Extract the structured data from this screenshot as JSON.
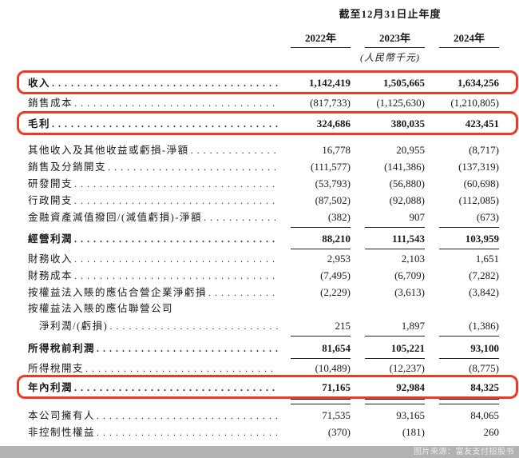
{
  "header": {
    "period_title": "截至12月31日止年度",
    "years": [
      "2022年",
      "2023年",
      "2024年"
    ],
    "unit_note": "(人民幣千元)"
  },
  "colors": {
    "highlight_red": "#ee3a24",
    "source_bar_gray": "#b2b2b2"
  },
  "rows": [
    {
      "label": "收入",
      "v2022": "1,142,419",
      "v2023": "1,505,665",
      "v2024": "1,634,256",
      "emphasis": "bold-red-box"
    },
    {
      "label": "銷售成本",
      "v2022": "(817,733)",
      "v2023": "(1,125,630)",
      "v2024": "(1,210,805)"
    },
    {
      "label": "毛利",
      "v2022": "324,686",
      "v2023": "380,035",
      "v2024": "423,451",
      "emphasis": "bold-red-box"
    },
    {
      "label": "其他收入及其他收益或虧損-淨額",
      "v2022": "16,778",
      "v2023": "20,955",
      "v2024": "(8,717)"
    },
    {
      "label": "銷售及分銷開支",
      "v2022": "(111,577)",
      "v2023": "(141,386)",
      "v2024": "(137,319)"
    },
    {
      "label": "研發開支",
      "v2022": "(53,793)",
      "v2023": "(56,880)",
      "v2024": "(60,698)"
    },
    {
      "label": "行政開支",
      "v2022": "(87,502)",
      "v2023": "(92,088)",
      "v2024": "(112,085)"
    },
    {
      "label": "金融資產減值撥回/(減值虧損)-淨額",
      "v2022": "(382)",
      "v2023": "907",
      "v2024": "(673)"
    },
    {
      "label": "經營利潤",
      "v2022": "88,210",
      "v2023": "111,543",
      "v2024": "103,959",
      "emphasis": "bold"
    },
    {
      "label": "財務收入",
      "v2022": "2,953",
      "v2023": "2,103",
      "v2024": "1,651"
    },
    {
      "label": "財務成本",
      "v2022": "(7,495)",
      "v2023": "(6,709)",
      "v2024": "(7,282)"
    },
    {
      "label": "按權益法入賬的應佔合營企業淨虧損",
      "v2022": "(2,229)",
      "v2023": "(3,613)",
      "v2024": "(3,842)"
    },
    {
      "label": "按權益法入賬的應佔聯營公司",
      "v2022": "",
      "v2023": "",
      "v2024": ""
    },
    {
      "label": "淨利潤/(虧損)",
      "v2022": "215",
      "v2023": "1,897",
      "v2024": "(1,386)"
    },
    {
      "label": "所得稅前利潤",
      "v2022": "81,654",
      "v2023": "105,221",
      "v2024": "93,100",
      "emphasis": "bold"
    },
    {
      "label": "所得稅開支",
      "v2022": "(10,489)",
      "v2023": "(12,237)",
      "v2024": "(8,775)"
    },
    {
      "label": "年內利潤",
      "v2022": "71,165",
      "v2023": "92,984",
      "v2024": "84,325",
      "emphasis": "bold-red-box"
    },
    {
      "label": "本公司擁有人",
      "v2022": "71,535",
      "v2023": "93,165",
      "v2024": "84,065"
    },
    {
      "label": "非控制性權益",
      "v2022": "(370)",
      "v2023": "(181)",
      "v2024": "260"
    }
  ],
  "footer": {
    "source_text": "图片来源：富友支付招股书"
  }
}
